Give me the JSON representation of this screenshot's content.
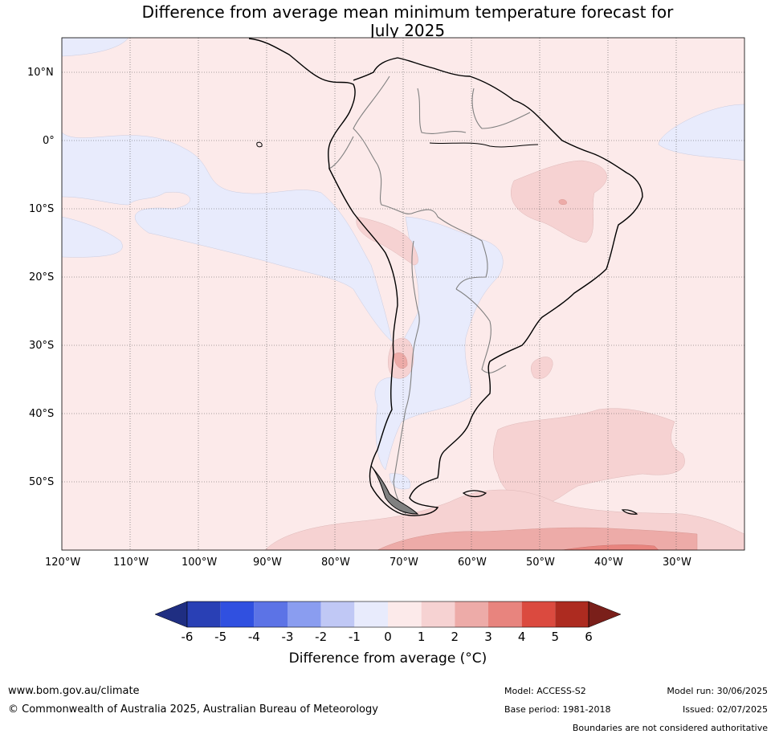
{
  "title": {
    "line1": "Difference from average mean minimum temperature forecast for",
    "line2": "July 2025"
  },
  "map": {
    "lat_labels": [
      {
        "lat": 10,
        "text": "10°N"
      },
      {
        "lat": 0,
        "text": "0°"
      },
      {
        "lat": -10,
        "text": "10°S"
      },
      {
        "lat": -20,
        "text": "20°S"
      },
      {
        "lat": -30,
        "text": "30°S"
      },
      {
        "lat": -40,
        "text": "40°S"
      },
      {
        "lat": -50,
        "text": "50°S"
      }
    ],
    "lon_labels": [
      {
        "lon": -120,
        "text": "120°W"
      },
      {
        "lon": -110,
        "text": "110°W"
      },
      {
        "lon": -100,
        "text": "100°W"
      },
      {
        "lon": -90,
        "text": "90°W"
      },
      {
        "lon": -80,
        "text": "80°W"
      },
      {
        "lon": -70,
        "text": "70°W"
      },
      {
        "lon": -60,
        "text": "60°W"
      },
      {
        "lon": -50,
        "text": "50°W"
      },
      {
        "lon": -40,
        "text": "40°W"
      },
      {
        "lon": -30,
        "text": "30°W"
      }
    ],
    "extent": {
      "lon_min": -120,
      "lon_max": -20,
      "lat_min": -60,
      "lat_max": 15
    }
  },
  "colorbar": {
    "ticks": [
      "-6",
      "-5",
      "-4",
      "-3",
      "-2",
      "-1",
      "0",
      "1",
      "2",
      "3",
      "4",
      "5",
      "6"
    ],
    "colors": [
      "#1f2e82",
      "#2940b5",
      "#3050e0",
      "#5c73e6",
      "#8a9df0",
      "#c0c8f5",
      "#e8ebfc",
      "#fceaea",
      "#f6d2d2",
      "#edaba8",
      "#e8847e",
      "#db4a3f",
      "#ad2b20",
      "#7a1f1a"
    ],
    "label": "Difference from average (°C)"
  },
  "footer": {
    "website": "www.bom.gov.au/climate",
    "copyright": "© Commonwealth of Australia 2025, Australian Bureau of Meteorology",
    "model": "Model: ACCESS-S2",
    "base_period": "Base period: 1981-2018",
    "model_run": "Model run: 30/06/2025",
    "issued": "Issued: 02/07/2025",
    "disclaimer": "Boundaries are not considered authoritative"
  }
}
